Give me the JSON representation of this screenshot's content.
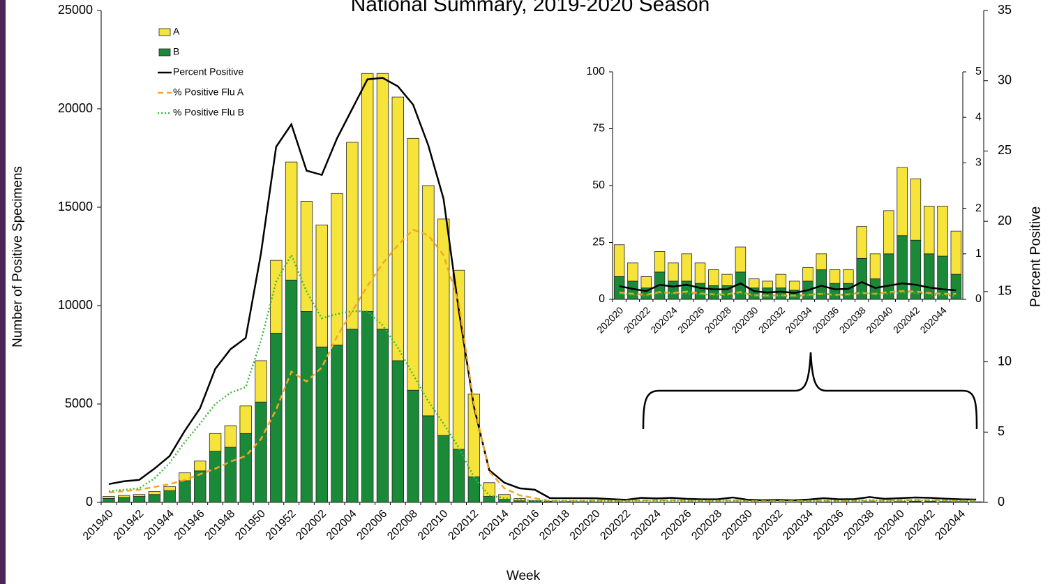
{
  "chart_data": [
    {
      "type": "bar",
      "stacked": true,
      "title": "National Summary, 2019-2020 Season",
      "xlabel": "Week",
      "ylabel": "Number of Positive Specimens",
      "y2label": "Percent Positive",
      "categories": [
        "201940",
        null,
        "201942",
        null,
        "201944",
        null,
        "201946",
        null,
        "201948",
        null,
        "201950",
        null,
        "201952",
        null,
        "202002",
        null,
        "202004",
        null,
        "202006",
        null,
        "202008",
        null,
        "202010",
        null,
        "202012",
        null,
        "202014",
        null,
        "202016",
        null,
        "202018",
        null,
        "202020",
        null,
        "202022",
        null,
        "202024",
        null,
        "202026",
        null,
        "202028",
        null,
        "202030",
        null,
        "202032",
        null,
        "202034",
        null,
        "202036",
        null,
        "202038",
        null,
        "202040",
        null,
        "202042",
        null,
        "202044",
        null
      ],
      "series": [
        {
          "name": "A",
          "color": "#f7e43a",
          "values": [
            100,
            100,
            100,
            150,
            200,
            400,
            500,
            900,
            1100,
            1400,
            2100,
            3700,
            6000,
            5600,
            6200,
            7700,
            9500,
            12100,
            13000,
            13400,
            12800,
            11700,
            11000,
            9100,
            4200,
            700,
            250,
            120,
            50,
            30,
            20,
            15,
            14,
            8,
            5,
            9,
            8,
            12,
            9,
            7,
            5,
            11,
            4,
            3,
            6,
            4,
            6,
            7,
            6,
            6,
            14,
            11,
            19,
            30,
            27,
            21,
            22,
            19
          ]
        },
        {
          "name": "B",
          "color": "#1b8a38",
          "values": [
            200,
            250,
            300,
            400,
            600,
            1100,
            1600,
            2600,
            2800,
            3500,
            5100,
            8600,
            11300,
            9700,
            7900,
            8000,
            8800,
            9700,
            8800,
            7200,
            5700,
            4400,
            3400,
            2700,
            1300,
            300,
            150,
            80,
            50,
            30,
            20,
            15,
            10,
            8,
            5,
            12,
            8,
            8,
            7,
            6,
            6,
            12,
            5,
            5,
            5,
            4,
            8,
            13,
            7,
            7,
            18,
            9,
            20,
            28,
            26,
            20,
            19,
            11
          ]
        },
        {
          "name": "Percent Positive",
          "type": "line",
          "axis": "y2",
          "color": "#000000",
          "dash": "solid",
          "values": [
            1.3,
            1.5,
            1.6,
            2.4,
            3.3,
            5.1,
            6.7,
            9.5,
            10.9,
            11.7,
            17.7,
            25.3,
            26.9,
            23.6,
            23.3,
            25.9,
            28.0,
            30.1,
            30.2,
            29.6,
            28.3,
            25.4,
            21.6,
            13.7,
            6.8,
            2.3,
            1.4,
            1.0,
            0.9,
            0.3,
            0.3,
            0.3,
            0.29,
            0.23,
            0.18,
            0.32,
            0.28,
            0.32,
            0.25,
            0.22,
            0.22,
            0.35,
            0.18,
            0.15,
            0.17,
            0.14,
            0.2,
            0.3,
            0.22,
            0.23,
            0.38,
            0.25,
            0.3,
            0.35,
            0.32,
            0.26,
            0.22,
            0.2
          ]
        },
        {
          "name": "% Positive Flu A",
          "type": "line",
          "axis": "y2",
          "color": "#f5a623",
          "dash": "dashed",
          "values": [
            0.7,
            0.8,
            0.9,
            1.1,
            1.3,
            1.6,
            2.0,
            2.4,
            2.9,
            3.3,
            4.5,
            6.6,
            9.3,
            8.6,
            9.6,
            11.8,
            13.6,
            15.4,
            17.0,
            18.3,
            19.4,
            19.0,
            17.6,
            14.2,
            7.0,
            2.2,
            1.0,
            0.5,
            0.3,
            0.1,
            0.1,
            0.1,
            0.15,
            0.12,
            0.1,
            0.16,
            0.14,
            0.17,
            0.13,
            0.11,
            0.11,
            0.16,
            0.09,
            0.08,
            0.09,
            0.08,
            0.1,
            0.12,
            0.1,
            0.11,
            0.14,
            0.12,
            0.16,
            0.18,
            0.17,
            0.14,
            0.12,
            0.12
          ]
        },
        {
          "name": "% Positive Flu B",
          "type": "line",
          "axis": "y2",
          "color": "#3cb93c",
          "dash": "dotted",
          "values": [
            0.8,
            0.9,
            1.0,
            1.7,
            2.8,
            4.3,
            5.6,
            7.0,
            7.8,
            8.2,
            11.5,
            15.7,
            17.6,
            15.0,
            13.1,
            13.4,
            13.6,
            13.6,
            12.6,
            11.0,
            9.1,
            7.2,
            5.6,
            3.9,
            1.8,
            0.5,
            0.3,
            0.2,
            0.1,
            0.1,
            0.1,
            0.1,
            0.12,
            0.1,
            0.08,
            0.14,
            0.12,
            0.13,
            0.11,
            0.1,
            0.1,
            0.14,
            0.08,
            0.07,
            0.08,
            0.06,
            0.09,
            0.13,
            0.1,
            0.1,
            0.16,
            0.11,
            0.12,
            0.15,
            0.14,
            0.11,
            0.09,
            0.08
          ]
        }
      ],
      "ylim": [
        0,
        25000
      ],
      "yticks": [
        0,
        5000,
        10000,
        15000,
        20000,
        25000
      ],
      "y2lim": [
        0,
        35
      ],
      "y2ticks": [
        0,
        5,
        10,
        15,
        20,
        25,
        30,
        35
      ],
      "grid": false,
      "legend": "top-left"
    },
    {
      "type": "bar",
      "stacked": true,
      "categories": [
        "202020",
        null,
        "202022",
        null,
        "202024",
        null,
        "202026",
        null,
        "202028",
        null,
        "202030",
        null,
        "202032",
        null,
        "202034",
        null,
        "202036",
        null,
        "202038",
        null,
        "202040",
        null,
        "202042",
        null,
        "202044",
        null
      ],
      "series": [
        {
          "color": "#f7e43a",
          "values": [
            14,
            8,
            5,
            9,
            8,
            12,
            9,
            7,
            5,
            11,
            4,
            3,
            6,
            4,
            6,
            7,
            6,
            6,
            14,
            11,
            19,
            30,
            27,
            21,
            22,
            19
          ]
        },
        {
          "color": "#1b8a38",
          "values": [
            10,
            8,
            5,
            12,
            8,
            8,
            7,
            6,
            6,
            12,
            5,
            5,
            5,
            4,
            8,
            13,
            7,
            7,
            18,
            9,
            20,
            28,
            26,
            20,
            19,
            11
          ]
        },
        {
          "type": "line",
          "axis": "y2",
          "color": "#000000",
          "dash": "solid",
          "values": [
            0.29,
            0.23,
            0.18,
            0.32,
            0.28,
            0.32,
            0.25,
            0.22,
            0.22,
            0.35,
            0.18,
            0.15,
            0.17,
            0.14,
            0.2,
            0.3,
            0.22,
            0.23,
            0.38,
            0.25,
            0.3,
            0.35,
            0.32,
            0.26,
            0.22,
            0.2
          ]
        },
        {
          "type": "line",
          "axis": "y2",
          "color": "#f5a623",
          "dash": "dashed",
          "values": [
            0.15,
            0.12,
            0.1,
            0.16,
            0.14,
            0.17,
            0.13,
            0.11,
            0.11,
            0.16,
            0.09,
            0.08,
            0.09,
            0.08,
            0.1,
            0.12,
            0.1,
            0.11,
            0.14,
            0.12,
            0.16,
            0.18,
            0.17,
            0.14,
            0.12,
            0.12
          ]
        },
        {
          "type": "line",
          "axis": "y2",
          "color": "#3cb93c",
          "dash": "dotted",
          "values": [
            0.12,
            0.1,
            0.08,
            0.14,
            0.12,
            0.13,
            0.11,
            0.1,
            0.1,
            0.14,
            0.08,
            0.07,
            0.08,
            0.06,
            0.09,
            0.13,
            0.1,
            0.1,
            0.16,
            0.11,
            0.12,
            0.15,
            0.14,
            0.11,
            0.09,
            0.08
          ]
        }
      ],
      "ylim": [
        0,
        100
      ],
      "yticks": [
        0,
        25,
        50,
        75,
        100
      ],
      "y2lim": [
        0,
        5
      ],
      "y2ticks": [
        0,
        1,
        2,
        3,
        4,
        5
      ],
      "grid": false
    }
  ]
}
